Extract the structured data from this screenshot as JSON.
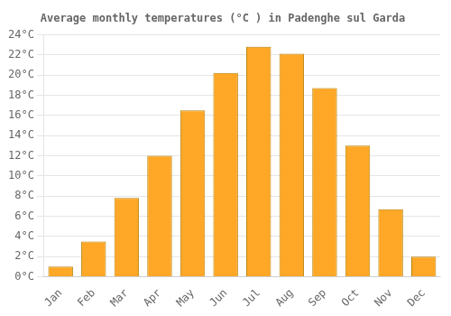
{
  "chart_data": {
    "type": "bar",
    "title": "Average monthly temperatures (°C ) in Padenghe sul Garda",
    "categories": [
      "Jan",
      "Feb",
      "Mar",
      "Apr",
      "May",
      "Jun",
      "Jul",
      "Aug",
      "Sep",
      "Oct",
      "Nov",
      "Dec"
    ],
    "values": [
      1.0,
      3.5,
      7.8,
      12.0,
      16.5,
      20.2,
      22.8,
      22.1,
      18.7,
      13.0,
      6.7,
      2.0
    ],
    "color": "#FFA726",
    "ylim": [
      0,
      24
    ],
    "yticks": [
      {
        "value": 0,
        "label": "0°C"
      },
      {
        "value": 2,
        "label": "2°C"
      },
      {
        "value": 4,
        "label": "4°C"
      },
      {
        "value": 6,
        "label": "6°C"
      },
      {
        "value": 8,
        "label": "8°C"
      },
      {
        "value": 10,
        "label": "10°C"
      },
      {
        "value": 12,
        "label": "12°C"
      },
      {
        "value": 14,
        "label": "14°C"
      },
      {
        "value": 16,
        "label": "16°C"
      },
      {
        "value": 18,
        "label": "18°C"
      },
      {
        "value": 20,
        "label": "20°C"
      },
      {
        "value": 22,
        "label": "22°C"
      },
      {
        "value": 24,
        "label": "24°C"
      }
    ],
    "grid": true
  }
}
